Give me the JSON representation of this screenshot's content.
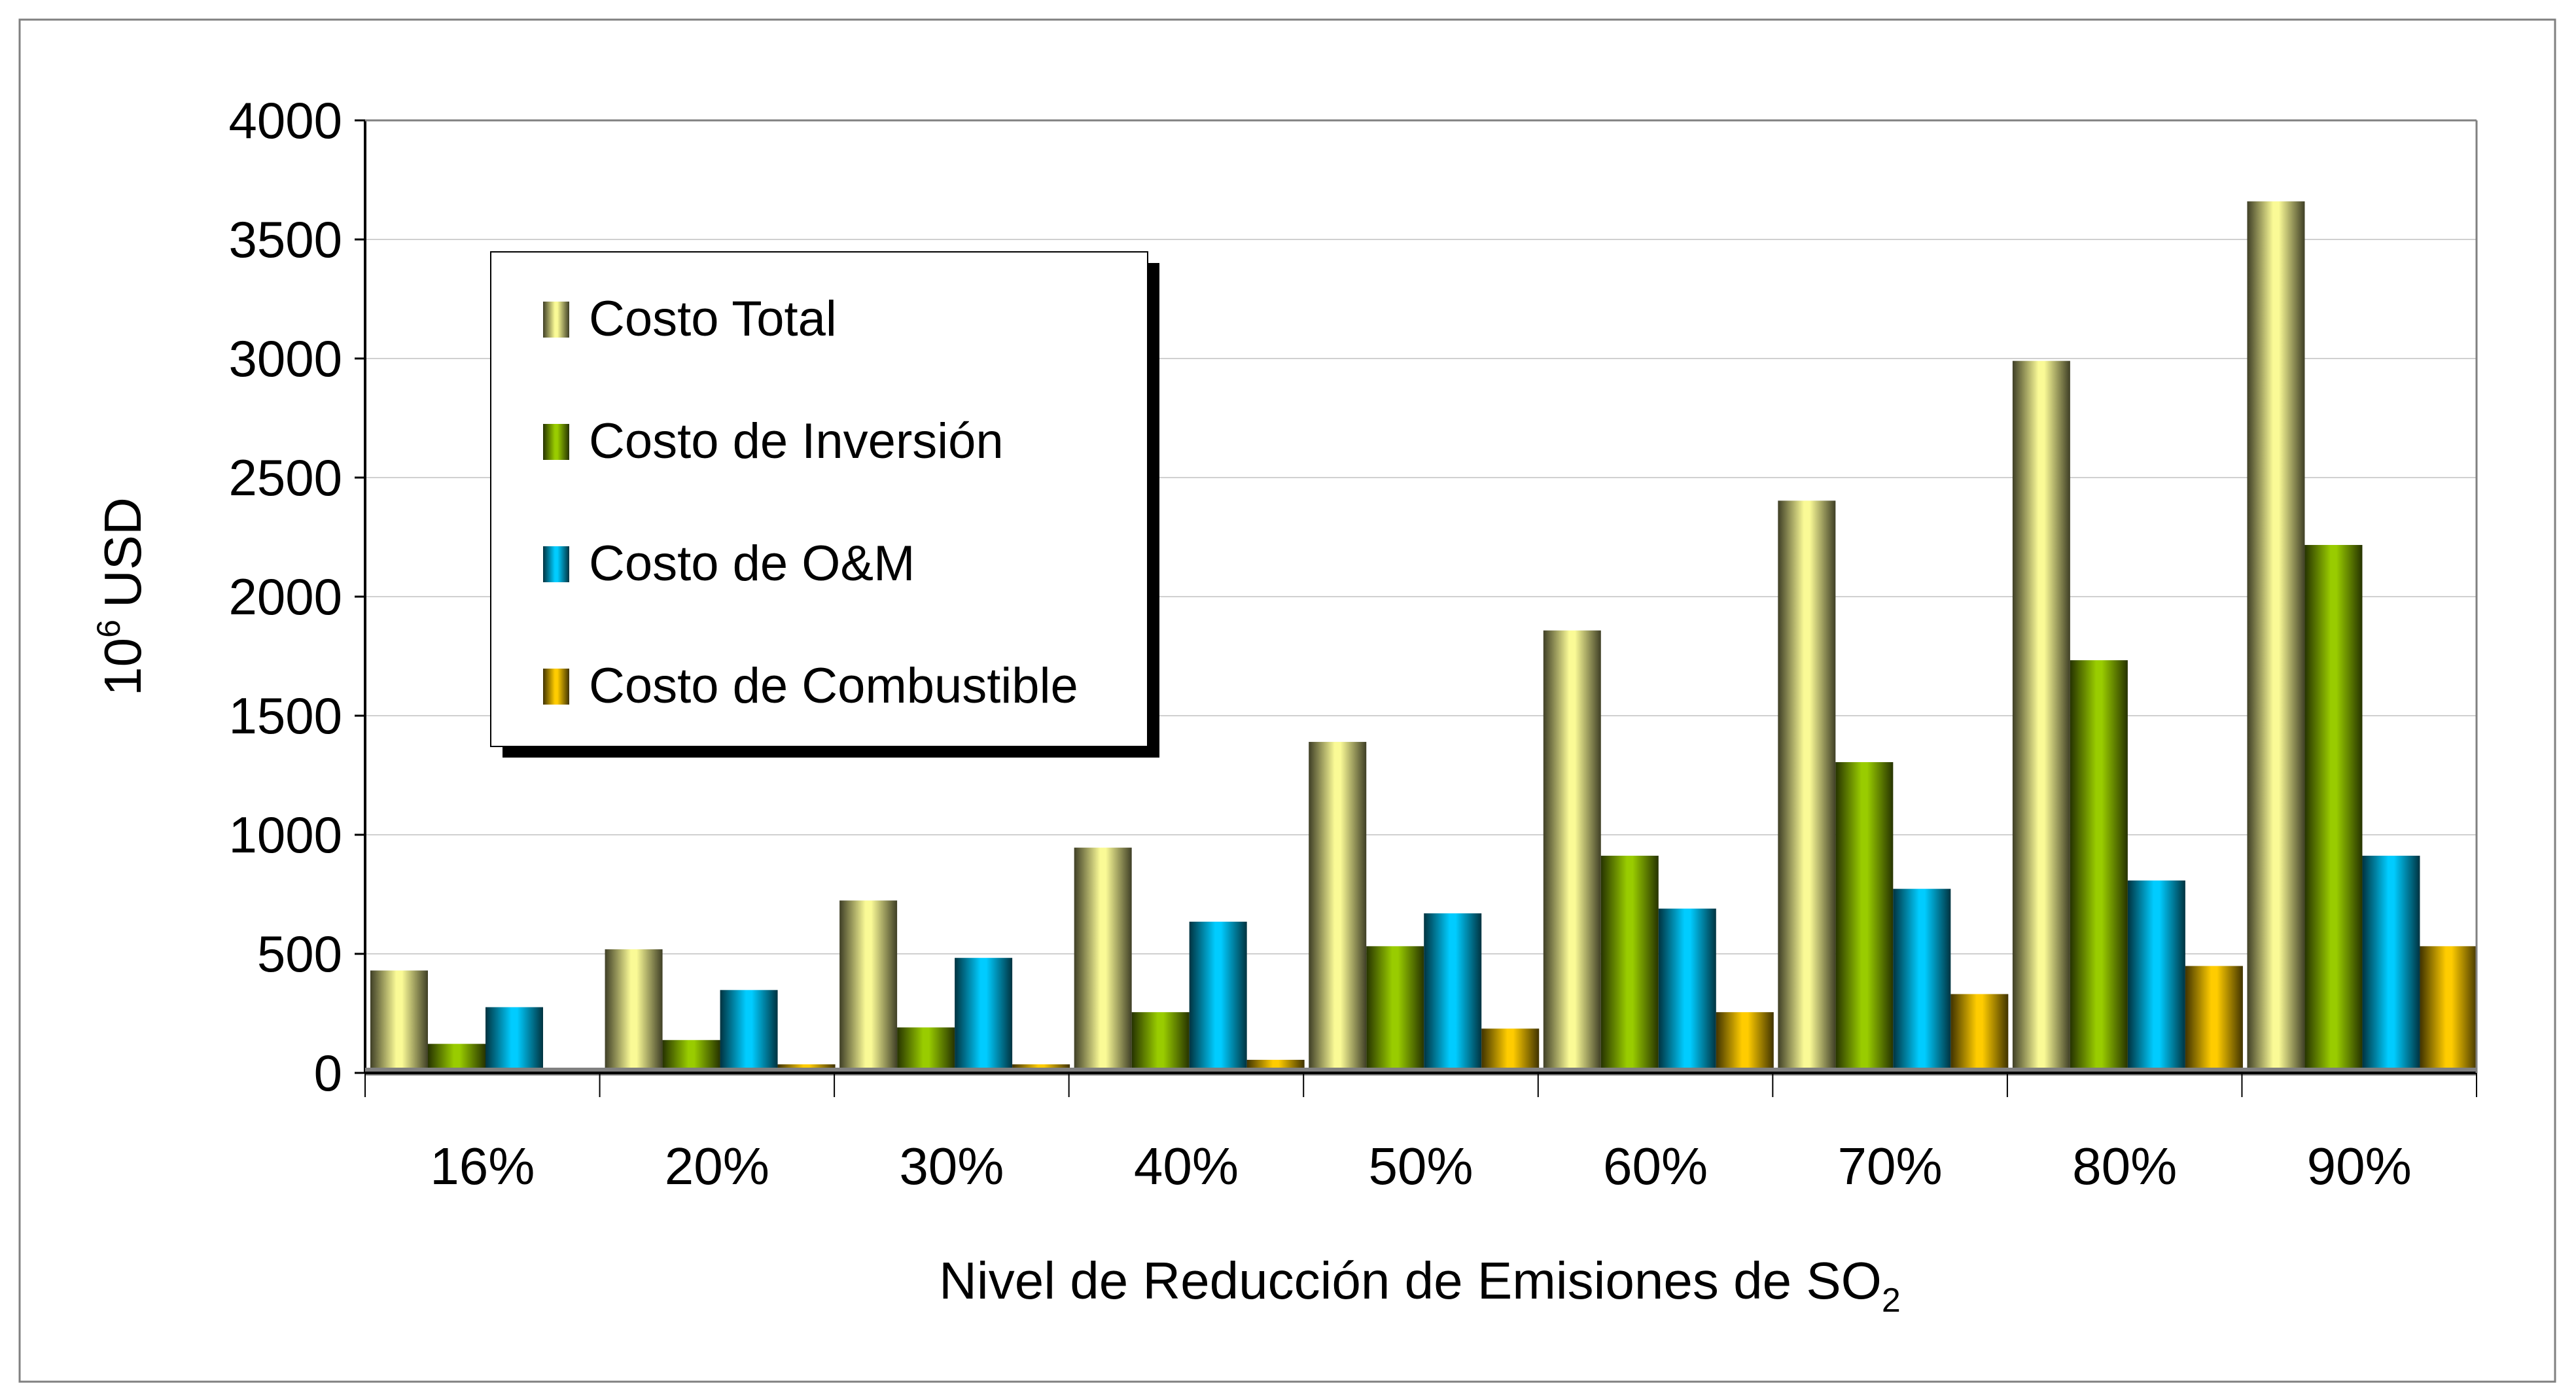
{
  "chart_data": {
    "type": "bar",
    "title": "",
    "xlabel": "Nivel de Reducción de Emisiones de SO",
    "xlabel_subscript": "2",
    "ylabel": "USD",
    "ylabel_prefix": "10",
    "ylabel_superscript": "6",
    "ylim": [
      0,
      4000
    ],
    "yticks": [
      0,
      500,
      1000,
      1500,
      2000,
      2500,
      3000,
      3500,
      4000
    ],
    "grid": true,
    "legend_position": "top-left",
    "categories": [
      "16%",
      "20%",
      "30%",
      "40%",
      "50%",
      "60%",
      "70%",
      "80%",
      "90%"
    ],
    "series": [
      {
        "name": "Costo Total",
        "color": "#fafa96",
        "values": [
          430,
          519,
          724,
          946,
          1390,
          1858,
          2403,
          2990,
          3660
        ]
      },
      {
        "name": "Costo de Inversión",
        "color": "#99cc00",
        "values": [
          122,
          138,
          191,
          255,
          532,
          912,
          1305,
          1733,
          2217
        ]
      },
      {
        "name": "Costo de O&M",
        "color": "#00ccff",
        "values": [
          276,
          348,
          483,
          635,
          670,
          690,
          773,
          808,
          912
        ]
      },
      {
        "name": "Costo de Combustible",
        "color": "#ffcc00",
        "values": [
          17,
          36,
          36,
          55,
          186,
          255,
          331,
          449,
          532
        ]
      }
    ]
  }
}
